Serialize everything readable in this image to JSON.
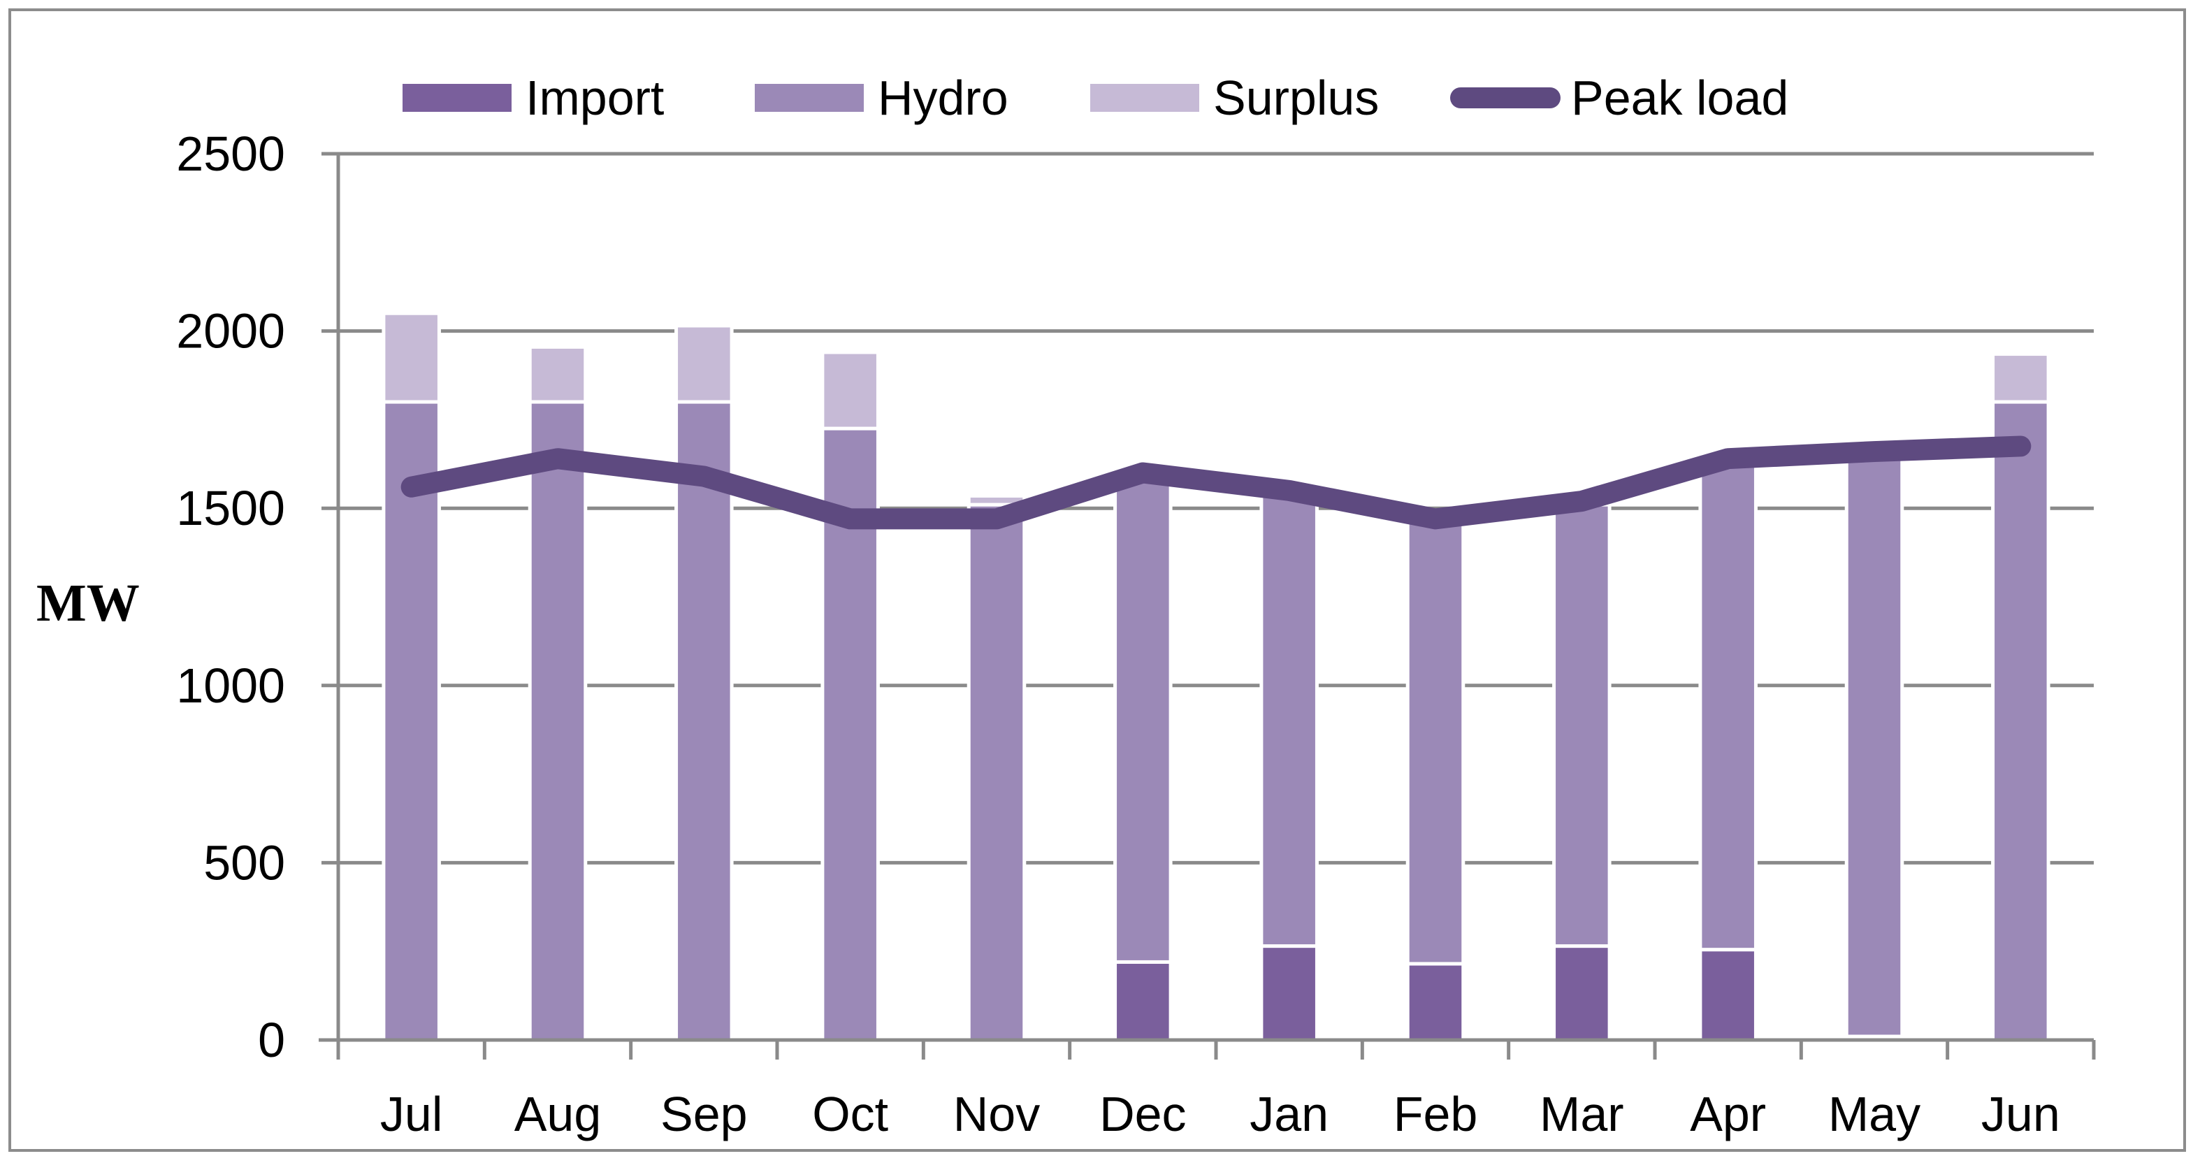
{
  "chart_data": {
    "type": "bar",
    "stacked": true,
    "categories": [
      "Jul",
      "Aug",
      "Sep",
      "Oct",
      "Nov",
      "Dec",
      "Jan",
      "Feb",
      "Mar",
      "Apr",
      "May",
      "Jun"
    ],
    "series": [
      {
        "name": "Import",
        "kind": "bar",
        "color": "#7a5f9c",
        "values": [
          0,
          0,
          0,
          0,
          0,
          220,
          265,
          215,
          265,
          255,
          10,
          0
        ]
      },
      {
        "name": "Hydro",
        "kind": "bar",
        "color": "#9b89b7",
        "values": [
          1800,
          1800,
          1800,
          1725,
          1510,
          1360,
          1280,
          1275,
          1245,
          1390,
          1640,
          1800
        ]
      },
      {
        "name": "Surplus",
        "kind": "bar",
        "color": "#c6bad6",
        "values": [
          250,
          155,
          215,
          215,
          25,
          0,
          0,
          0,
          0,
          0,
          0,
          135
        ]
      },
      {
        "name": "Peak load",
        "kind": "line",
        "color": "#5e4a80",
        "values": [
          1560,
          1640,
          1590,
          1470,
          1470,
          1600,
          1550,
          1470,
          1520,
          1640,
          1660,
          1675
        ]
      }
    ],
    "title": "",
    "xlabel": "",
    "ylabel": "MW",
    "ylim": [
      0,
      2500
    ],
    "yticks": [
      0,
      500,
      1000,
      1500,
      2000,
      2500
    ],
    "grid": true,
    "legend": "top"
  }
}
